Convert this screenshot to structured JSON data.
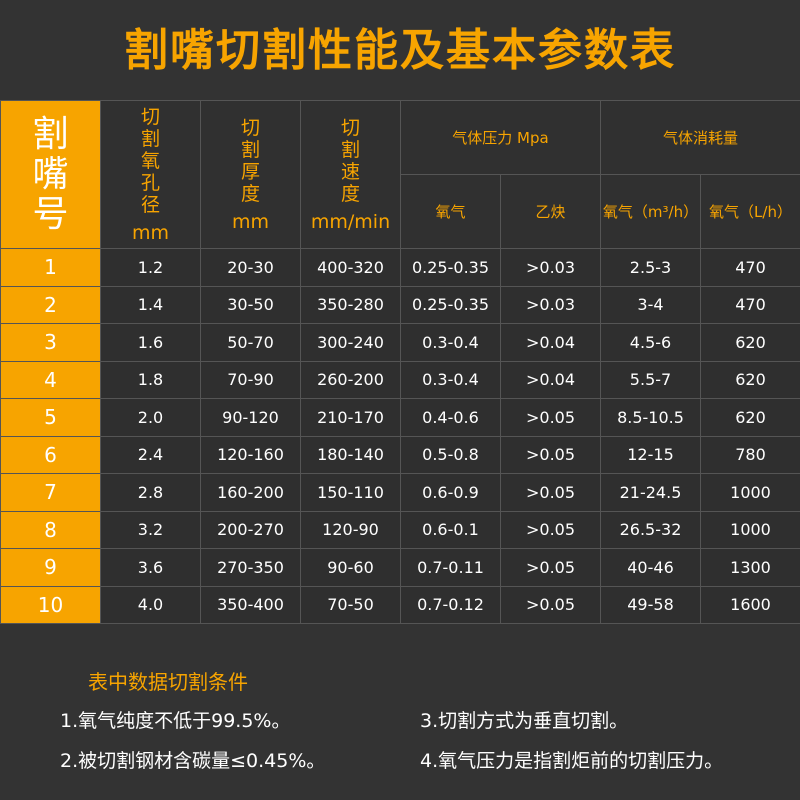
{
  "title": "割嘴切割性能及基本参数表",
  "headers": {
    "nozzle_no": "割\n嘴\n号",
    "oxygen_hole_dia": {
      "label": "切\n割\n氧\n孔\n径",
      "unit": "mm"
    },
    "thickness": {
      "label": "切\n割\n厚\n度",
      "unit": "mm"
    },
    "speed": {
      "label": "切\n割\n速\n度",
      "unit": "mm/min"
    },
    "gas_pressure": "气体压力 Mpa",
    "gas_consumption": "气体消耗量",
    "oxygen": "氧气",
    "acetylene": "乙炔",
    "oxygen_m3h": "氧气（m³/h）",
    "oxygen_lh": "氧气（L/h）"
  },
  "rows": [
    {
      "no": "1",
      "dia": "1.2",
      "thickness": "20-30",
      "speed": "400-320",
      "o2_pressure": "0.25-0.35",
      "c2h2_pressure": ">0.03",
      "o2_m3h": "2.5-3",
      "o2_lh": "470"
    },
    {
      "no": "2",
      "dia": "1.4",
      "thickness": "30-50",
      "speed": "350-280",
      "o2_pressure": "0.25-0.35",
      "c2h2_pressure": ">0.03",
      "o2_m3h": "3-4",
      "o2_lh": "470"
    },
    {
      "no": "3",
      "dia": "1.6",
      "thickness": "50-70",
      "speed": "300-240",
      "o2_pressure": "0.3-0.4",
      "c2h2_pressure": ">0.04",
      "o2_m3h": "4.5-6",
      "o2_lh": "620"
    },
    {
      "no": "4",
      "dia": "1.8",
      "thickness": "70-90",
      "speed": "260-200",
      "o2_pressure": "0.3-0.4",
      "c2h2_pressure": ">0.04",
      "o2_m3h": "5.5-7",
      "o2_lh": "620"
    },
    {
      "no": "5",
      "dia": "2.0",
      "thickness": "90-120",
      "speed": "210-170",
      "o2_pressure": "0.4-0.6",
      "c2h2_pressure": ">0.05",
      "o2_m3h": "8.5-10.5",
      "o2_lh": "620"
    },
    {
      "no": "6",
      "dia": "2.4",
      "thickness": "120-160",
      "speed": "180-140",
      "o2_pressure": "0.5-0.8",
      "c2h2_pressure": ">0.05",
      "o2_m3h": "12-15",
      "o2_lh": "780"
    },
    {
      "no": "7",
      "dia": "2.8",
      "thickness": "160-200",
      "speed": "150-110",
      "o2_pressure": "0.6-0.9",
      "c2h2_pressure": ">0.05",
      "o2_m3h": "21-24.5",
      "o2_lh": "1000"
    },
    {
      "no": "8",
      "dia": "3.2",
      "thickness": "200-270",
      "speed": "120-90",
      "o2_pressure": "0.6-0.1",
      "c2h2_pressure": ">0.05",
      "o2_m3h": "26.5-32",
      "o2_lh": "1000"
    },
    {
      "no": "9",
      "dia": "3.6",
      "thickness": "270-350",
      "speed": "90-60",
      "o2_pressure": "0.7-0.11",
      "c2h2_pressure": ">0.05",
      "o2_m3h": "40-46",
      "o2_lh": "1300"
    },
    {
      "no": "10",
      "dia": "4.0",
      "thickness": "350-400",
      "speed": "70-50",
      "o2_pressure": "0.7-0.12",
      "c2h2_pressure": ">0.05",
      "o2_m3h": "49-58",
      "o2_lh": "1600"
    }
  ],
  "notes": {
    "title": "表中数据切割条件",
    "items": [
      "1.氧气纯度不低于99.5%。",
      "3.切割方式为垂直切割。",
      "2.被切割钢材含碳量≤0.45%。",
      "4.氧气压力是指割炬前的切割压力。"
    ]
  },
  "colors": {
    "accent": "#f7a400",
    "background": "#333333",
    "cell": "#2f2f2f",
    "border": "#555555"
  }
}
